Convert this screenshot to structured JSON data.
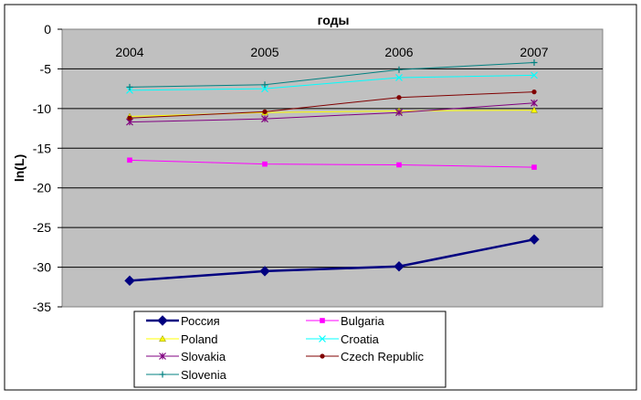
{
  "chart_data": {
    "type": "line",
    "title": "годы",
    "xlabel": "",
    "ylabel": "ln(L)",
    "categories": [
      "2004",
      "2005",
      "2006",
      "2007"
    ],
    "ylim": [
      -35,
      0
    ],
    "yticks": [
      0,
      -5,
      -10,
      -15,
      -20,
      -25,
      -30,
      -35
    ],
    "x_axis_position": "top",
    "grid": "horizontal",
    "legend_position": "bottom",
    "series": [
      {
        "name": "Россия",
        "values": [
          -31.7,
          -30.5,
          -29.9,
          -26.5
        ],
        "color": "#000080",
        "marker": "diamond"
      },
      {
        "name": "Bulgaria",
        "values": [
          -16.5,
          -17.0,
          -17.1,
          -17.4
        ],
        "color": "#FF00FF",
        "marker": "square"
      },
      {
        "name": "Poland",
        "values": [
          -11.0,
          -10.5,
          -10.3,
          -10.2
        ],
        "color": "#FFFF00",
        "marker": "triangle"
      },
      {
        "name": "Croatia",
        "values": [
          -7.7,
          -7.5,
          -6.1,
          -5.8
        ],
        "color": "#00FFFF",
        "marker": "x"
      },
      {
        "name": "Slovakia",
        "values": [
          -11.7,
          -11.3,
          -10.5,
          -9.3
        ],
        "color": "#800080",
        "marker": "star"
      },
      {
        "name": "Czech Republic",
        "values": [
          -11.2,
          -10.4,
          -8.6,
          -7.9
        ],
        "color": "#800000",
        "marker": "circle"
      },
      {
        "name": "Slovenia",
        "values": [
          -7.3,
          -7.0,
          -5.1,
          -4.2
        ],
        "color": "#008080",
        "marker": "plus"
      }
    ]
  }
}
